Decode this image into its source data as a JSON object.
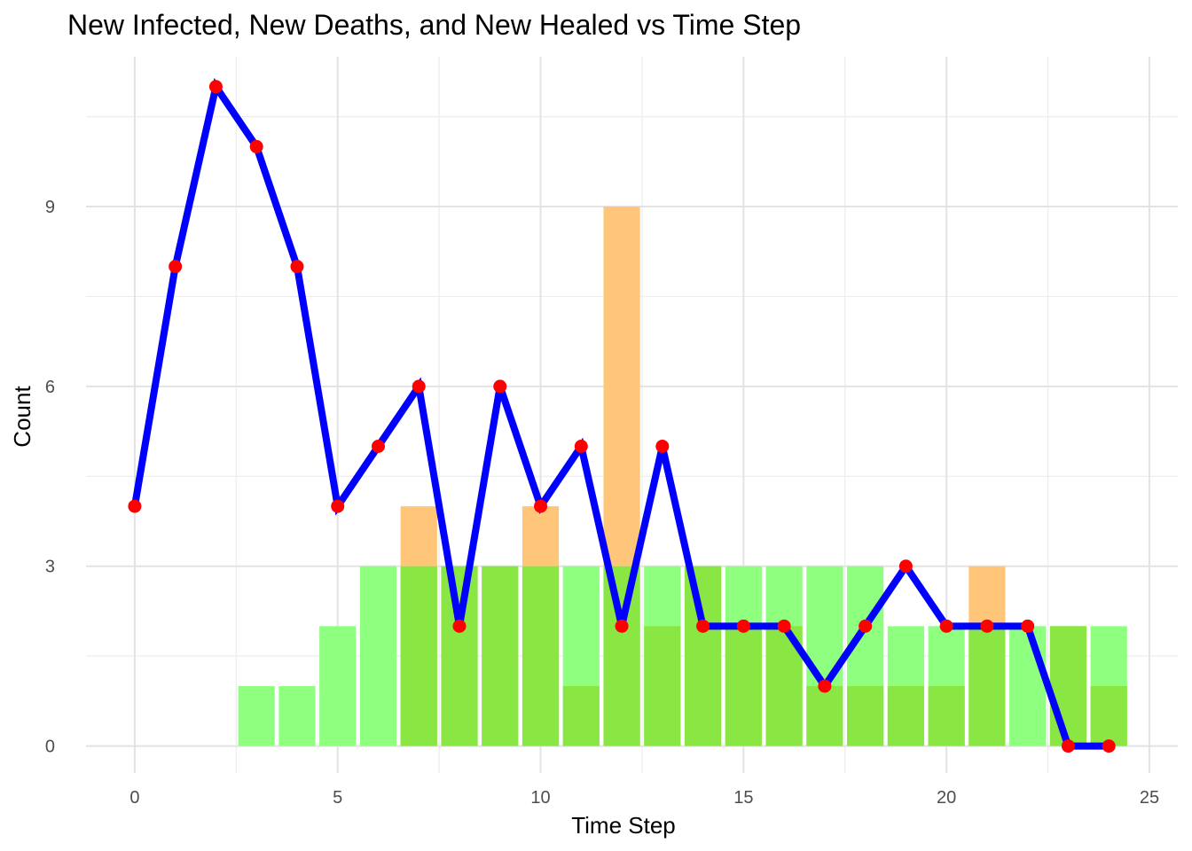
{
  "chart_data": {
    "type": "bar",
    "title": "New Infected, New Deaths, and New Healed vs Time Step",
    "xlabel": "Time Step",
    "ylabel": "Count",
    "xlim": [
      -1.2,
      25.7
    ],
    "ylim": [
      -0.45,
      11.5
    ],
    "xticks": [
      0,
      5,
      10,
      15,
      20,
      25
    ],
    "yticks": [
      0,
      3,
      6,
      9
    ],
    "grid": true,
    "legend": "none",
    "series": [
      {
        "type": "bar",
        "color": "#ffc67a",
        "x": [
          7,
          10,
          12,
          21
        ],
        "values": [
          4,
          4,
          9,
          3
        ]
      },
      {
        "type": "bar",
        "color": "#8fff80",
        "x": [
          3,
          4,
          5,
          6,
          7,
          8,
          9,
          10,
          11,
          12,
          13,
          14,
          15,
          16,
          17,
          18,
          19,
          20,
          21,
          22,
          23,
          24
        ],
        "values": [
          1,
          1,
          2,
          3,
          3,
          3,
          3,
          3,
          3,
          3,
          3,
          3,
          3,
          3,
          3,
          3,
          2,
          2,
          2,
          2,
          2,
          2
        ]
      },
      {
        "type": "bar",
        "color": "#8ae642",
        "x": [
          7,
          8,
          9,
          10,
          11,
          12,
          13,
          14,
          15,
          16,
          17,
          18,
          19,
          20,
          21,
          23,
          24
        ],
        "values": [
          3,
          3,
          3,
          3,
          1,
          3,
          2,
          3,
          2,
          2,
          1,
          1,
          1,
          1,
          2,
          2,
          1
        ]
      },
      {
        "type": "line",
        "color": "#0000ff",
        "point_color": "#ff0000",
        "x": [
          0,
          1,
          2,
          3,
          4,
          5,
          6,
          7,
          8,
          9,
          10,
          11,
          12,
          13,
          14,
          15,
          16,
          17,
          18,
          19,
          20,
          21,
          22,
          23,
          24
        ],
        "values": [
          4,
          8,
          11,
          10,
          8,
          4,
          5,
          6,
          2,
          6,
          4,
          5,
          2,
          5,
          2,
          2,
          2,
          1,
          2,
          3,
          2,
          2,
          2,
          0,
          0
        ]
      }
    ]
  }
}
